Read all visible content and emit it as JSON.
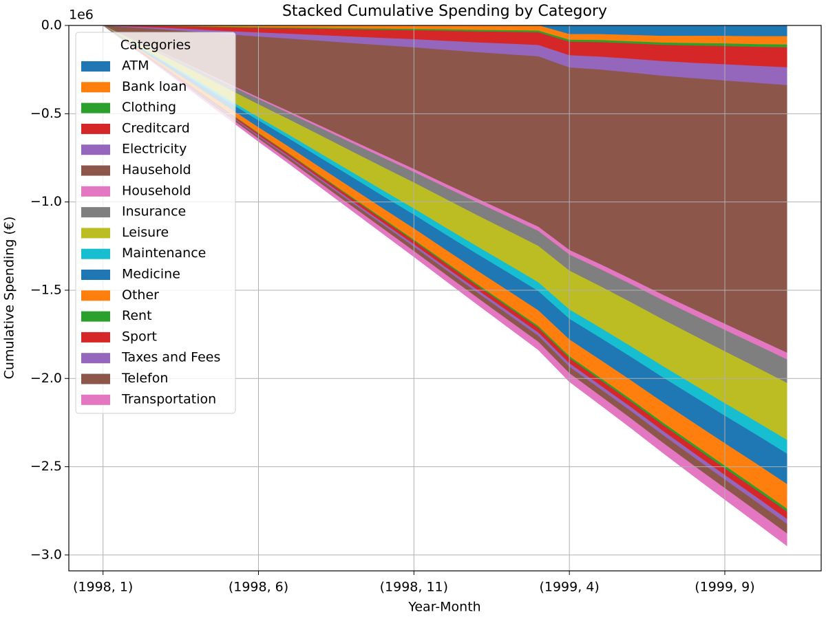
{
  "chart_data": {
    "type": "stacked_area",
    "title": "Stacked Cumulative Spending by Category",
    "x_label": "Year-Month",
    "y_label": "Cumulative Spending (€)",
    "y_offset_label": "1e6",
    "legend_title": "Categories",
    "legend_loc": "upper left",
    "grid": true,
    "categories": [
      "(1998, 1)",
      null,
      null,
      null,
      null,
      "(1998, 6)",
      null,
      null,
      null,
      null,
      "(1998, 11)",
      null,
      null,
      null,
      null,
      "(1999, 4)",
      null,
      null,
      null,
      null,
      "(1999, 9)",
      null,
      null
    ],
    "ylim": [
      -3.09,
      0
    ],
    "yticks": [
      {
        "value": 0,
        "label": "0.0"
      },
      {
        "value": -0.5,
        "label": "−0.5"
      },
      {
        "value": -1.0,
        "label": "−1.0"
      },
      {
        "value": -1.5,
        "label": "−1.5"
      },
      {
        "value": -2.0,
        "label": "−2.0"
      },
      {
        "value": -2.5,
        "label": "−2.5"
      },
      {
        "value": -3.0,
        "label": "−3.0"
      }
    ],
    "series": [
      {
        "name": "ATM",
        "color": "#1f77b4",
        "values": [
          0,
          0,
          0,
          0,
          0,
          0,
          0,
          0,
          0,
          0,
          0,
          0,
          0,
          0,
          0,
          -0.05,
          -0.05,
          -0.055,
          -0.06,
          -0.06,
          -0.06,
          -0.062,
          -0.062
        ]
      },
      {
        "name": "Bank loan",
        "color": "#ff7f0e",
        "values": [
          0,
          -0.002,
          -0.004,
          -0.006,
          -0.009,
          -0.011,
          -0.013,
          -0.015,
          -0.017,
          -0.019,
          -0.021,
          -0.023,
          -0.026,
          -0.028,
          -0.03,
          -0.032,
          -0.034,
          -0.036,
          -0.038,
          -0.041,
          -0.043,
          -0.045,
          -0.047
        ]
      },
      {
        "name": "Clothing",
        "color": "#2ca02c",
        "values": [
          0,
          -0.001,
          -0.001,
          -0.002,
          -0.003,
          -0.004,
          -0.004,
          -0.005,
          -0.006,
          -0.007,
          -0.007,
          -0.008,
          -0.009,
          -0.009,
          -0.01,
          -0.011,
          -0.012,
          -0.012,
          -0.013,
          -0.014,
          -0.015,
          -0.015,
          -0.016
        ]
      },
      {
        "name": "Creditcard",
        "color": "#d62728",
        "values": [
          0,
          -0.005,
          -0.01,
          -0.015,
          -0.021,
          -0.026,
          -0.031,
          -0.036,
          -0.041,
          -0.046,
          -0.051,
          -0.057,
          -0.062,
          -0.067,
          -0.072,
          -0.077,
          -0.082,
          -0.087,
          -0.092,
          -0.098,
          -0.103,
          -0.108,
          -0.113
        ]
      },
      {
        "name": "Electricity",
        "color": "#9467bd",
        "values": [
          0,
          -0.005,
          -0.009,
          -0.014,
          -0.018,
          -0.023,
          -0.028,
          -0.032,
          -0.037,
          -0.041,
          -0.046,
          -0.051,
          -0.055,
          -0.06,
          -0.064,
          -0.069,
          -0.073,
          -0.078,
          -0.083,
          -0.087,
          -0.092,
          -0.096,
          -0.101
        ]
      },
      {
        "name": "Hausehold",
        "color": "#8c564b",
        "values": [
          0,
          -0.069,
          -0.138,
          -0.207,
          -0.276,
          -0.345,
          -0.413,
          -0.482,
          -0.551,
          -0.62,
          -0.689,
          -0.758,
          -0.827,
          -0.896,
          -0.965,
          -1.034,
          -1.103,
          -1.171,
          -1.24,
          -1.309,
          -1.378,
          -1.447,
          -1.516
        ]
      },
      {
        "name": "Household",
        "color": "#e377c2",
        "values": [
          0,
          -0.002,
          -0.003,
          -0.005,
          -0.007,
          -0.009,
          -0.01,
          -0.012,
          -0.014,
          -0.016,
          -0.017,
          -0.019,
          -0.021,
          -0.022,
          -0.024,
          -0.026,
          -0.028,
          -0.029,
          -0.031,
          -0.033,
          -0.035,
          -0.036,
          -0.038
        ]
      },
      {
        "name": "Insurance",
        "color": "#7f7f7f",
        "values": [
          0,
          -0.006,
          -0.012,
          -0.018,
          -0.024,
          -0.03,
          -0.036,
          -0.042,
          -0.048,
          -0.054,
          -0.06,
          -0.066,
          -0.073,
          -0.079,
          -0.085,
          -0.091,
          -0.097,
          -0.103,
          -0.109,
          -0.115,
          -0.121,
          -0.127,
          -0.133
        ]
      },
      {
        "name": "Leisure",
        "color": "#bcbd22",
        "values": [
          0,
          -0.015,
          -0.029,
          -0.044,
          -0.059,
          -0.073,
          -0.088,
          -0.103,
          -0.117,
          -0.132,
          -0.147,
          -0.162,
          -0.176,
          -0.191,
          -0.206,
          -0.22,
          -0.235,
          -0.25,
          -0.264,
          -0.279,
          -0.294,
          -0.308,
          -0.323
        ]
      },
      {
        "name": "Maintenance",
        "color": "#17becf",
        "values": [
          0,
          -0.004,
          -0.007,
          -0.011,
          -0.014,
          -0.018,
          -0.021,
          -0.025,
          -0.028,
          -0.032,
          -0.035,
          -0.039,
          -0.043,
          -0.046,
          -0.05,
          -0.053,
          -0.057,
          -0.06,
          -0.064,
          -0.067,
          -0.071,
          -0.074,
          -0.078
        ]
      },
      {
        "name": "Medicine",
        "color": "#1f77b4",
        "values": [
          0,
          -0.008,
          -0.016,
          -0.023,
          -0.031,
          -0.039,
          -0.047,
          -0.055,
          -0.063,
          -0.07,
          -0.078,
          -0.086,
          -0.094,
          -0.102,
          -0.109,
          -0.117,
          -0.125,
          -0.133,
          -0.141,
          -0.149,
          -0.156,
          -0.164,
          -0.172
        ]
      },
      {
        "name": "Other",
        "color": "#ff7f0e",
        "values": [
          0,
          -0.006,
          -0.013,
          -0.019,
          -0.025,
          -0.032,
          -0.038,
          -0.045,
          -0.051,
          -0.057,
          -0.064,
          -0.07,
          -0.076,
          -0.083,
          -0.089,
          -0.095,
          -0.102,
          -0.108,
          -0.115,
          -0.121,
          -0.127,
          -0.134,
          -0.14
        ]
      },
      {
        "name": "Rent",
        "color": "#2ca02c",
        "values": [
          0,
          -0.001,
          -0.001,
          -0.002,
          -0.003,
          -0.004,
          -0.004,
          -0.005,
          -0.006,
          -0.007,
          -0.007,
          -0.008,
          -0.009,
          -0.009,
          -0.01,
          -0.011,
          -0.012,
          -0.012,
          -0.013,
          -0.014,
          -0.015,
          -0.015,
          -0.016
        ]
      },
      {
        "name": "Sport",
        "color": "#d62728",
        "values": [
          0,
          -0.002,
          -0.004,
          -0.006,
          -0.008,
          -0.01,
          -0.011,
          -0.013,
          -0.015,
          -0.017,
          -0.019,
          -0.021,
          -0.023,
          -0.025,
          -0.027,
          -0.029,
          -0.031,
          -0.032,
          -0.034,
          -0.036,
          -0.038,
          -0.04,
          -0.042
        ]
      },
      {
        "name": "Taxes and Fees",
        "color": "#9467bd",
        "values": [
          0,
          -0.001,
          -0.003,
          -0.004,
          -0.005,
          -0.006,
          -0.008,
          -0.009,
          -0.01,
          -0.011,
          -0.013,
          -0.014,
          -0.015,
          -0.017,
          -0.018,
          -0.019,
          -0.02,
          -0.022,
          -0.023,
          -0.024,
          -0.025,
          -0.027,
          -0.028
        ]
      },
      {
        "name": "Telefon",
        "color": "#8c564b",
        "values": [
          0,
          -0.002,
          -0.005,
          -0.007,
          -0.01,
          -0.012,
          -0.015,
          -0.017,
          -0.02,
          -0.022,
          -0.025,
          -0.027,
          -0.029,
          -0.032,
          -0.034,
          -0.037,
          -0.039,
          -0.042,
          -0.044,
          -0.047,
          -0.049,
          -0.052,
          -0.054
        ]
      },
      {
        "name": "Transportation",
        "color": "#e377c2",
        "values": [
          0,
          -0.003,
          -0.006,
          -0.01,
          -0.013,
          -0.016,
          -0.019,
          -0.022,
          -0.025,
          -0.029,
          -0.032,
          -0.035,
          -0.038,
          -0.041,
          -0.045,
          -0.048,
          -0.051,
          -0.054,
          -0.057,
          -0.06,
          -0.064,
          -0.067,
          -0.07
        ]
      }
    ]
  }
}
